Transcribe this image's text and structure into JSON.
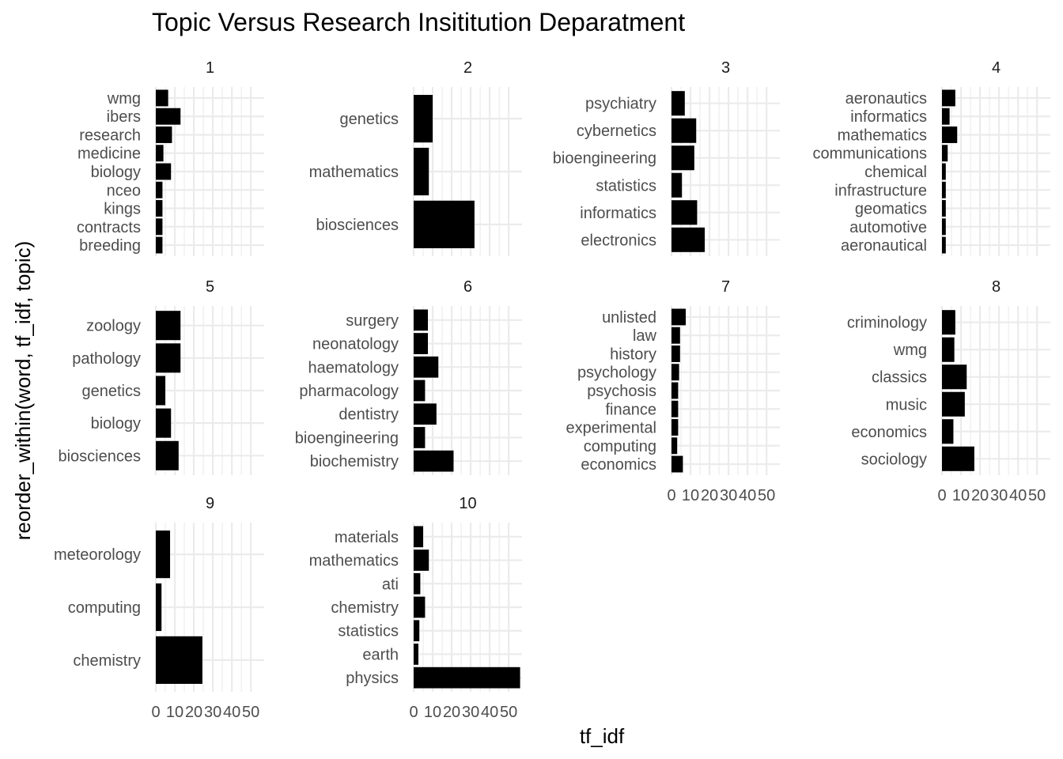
{
  "chart_data": {
    "type": "bar",
    "orientation": "horizontal",
    "title": "Topic Versus Research Insititution Deparatment",
    "xlabel": "tf_idf",
    "ylabel": "reorder_within(word, tf_idf, topic)",
    "xlim": [
      0,
      57
    ],
    "x_ticks": [
      0,
      10,
      20,
      30,
      40,
      50
    ],
    "grid": true,
    "bar_color": "#000000",
    "grid_color": "#ebebeb",
    "facets": [
      {
        "label": "1",
        "categories": [
          "wmg",
          "ibers",
          "research",
          "medicine",
          "biology",
          "nceo",
          "kings",
          "contracts",
          "breeding"
        ],
        "values": [
          6.5,
          13,
          8.5,
          4,
          8,
          3.5,
          3.5,
          3.5,
          3.5
        ]
      },
      {
        "label": "2",
        "categories": [
          "genetics",
          "mathematics",
          "biosciences"
        ],
        "values": [
          10,
          8,
          32
        ]
      },
      {
        "label": "3",
        "categories": [
          "psychiatry",
          "cybernetics",
          "bioengineering",
          "statistics",
          "informatics",
          "electronics"
        ],
        "values": [
          7,
          13,
          12,
          5.5,
          13.5,
          17.5
        ]
      },
      {
        "label": "4",
        "categories": [
          "aeronautics",
          "informatics",
          "mathematics",
          "communications",
          "chemical",
          "infrastructure",
          "geomatics",
          "automotive",
          "aeronautical"
        ],
        "values": [
          7,
          4,
          8,
          3,
          2,
          2,
          2,
          2,
          2
        ]
      },
      {
        "label": "5",
        "categories": [
          "zoology",
          "pathology",
          "genetics",
          "biology",
          "biosciences"
        ],
        "values": [
          13,
          13,
          5,
          8,
          12
        ]
      },
      {
        "label": "6",
        "categories": [
          "surgery",
          "neonatology",
          "haematology",
          "pharmacology",
          "dentistry",
          "bioengineering",
          "biochemistry"
        ],
        "values": [
          7.5,
          7.5,
          13,
          6,
          12,
          6,
          21
        ]
      },
      {
        "label": "7",
        "categories": [
          "unlisted",
          "law",
          "history",
          "psychology",
          "psychosis",
          "finance",
          "experimental",
          "computing",
          "economics"
        ],
        "values": [
          7.5,
          4.5,
          4.5,
          4,
          3.5,
          3.5,
          3.5,
          3,
          6
        ]
      },
      {
        "label": "8",
        "categories": [
          "criminology",
          "wmg",
          "classics",
          "music",
          "economics",
          "sociology"
        ],
        "values": [
          7,
          6.5,
          13,
          12,
          6,
          17
        ]
      },
      {
        "label": "9",
        "categories": [
          "meteorology",
          "computing",
          "chemistry"
        ],
        "values": [
          7.5,
          3,
          24.5
        ]
      },
      {
        "label": "10",
        "categories": [
          "materials",
          "mathematics",
          "ati",
          "chemistry",
          "statistics",
          "earth",
          "physics"
        ],
        "values": [
          5,
          8,
          3.5,
          6,
          3,
          2.5,
          56
        ]
      }
    ]
  }
}
